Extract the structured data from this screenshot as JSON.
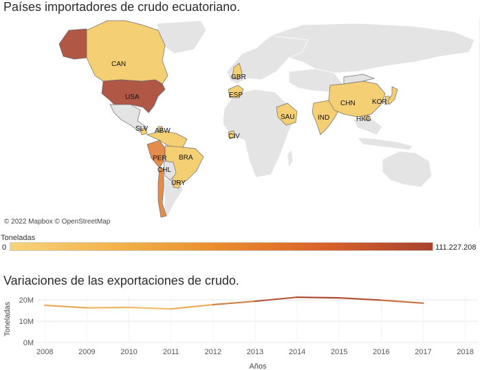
{
  "map": {
    "title": "Países importadores de crudo ecuatoriano.",
    "attribution": "© 2022 Mapbox © OpenStreetMap",
    "legend": {
      "title": "Toneladas",
      "min": "0",
      "max": "111.227.208"
    },
    "colors": {
      "base": "#e3e3e3",
      "low": "#f6d37a",
      "mid": "#ea8a2c",
      "high": "#a8412f"
    },
    "countries": [
      "CAN",
      "USA",
      "GBR",
      "ESP",
      "SAU",
      "CHN",
      "KOR",
      "IND",
      "HKG",
      "SLV",
      "ABW",
      "CIV",
      "PER",
      "BRA",
      "CHL",
      "URY"
    ]
  },
  "chart": {
    "title": "Variaciones de las exportaciones de crudo.",
    "ylabel": "Toneladas",
    "xlabel": "Años",
    "yticks": [
      "20M",
      "10M",
      "0M"
    ],
    "xticks": [
      "2008",
      "2009",
      "2010",
      "2011",
      "2012",
      "2013",
      "2014",
      "2015",
      "2016",
      "2017",
      "2018"
    ]
  },
  "chart_data": {
    "type": "line",
    "x": [
      2008,
      2009,
      2010,
      2011,
      2012,
      2013,
      2014,
      2015,
      2016,
      2017
    ],
    "values": [
      17.5,
      16.3,
      16.5,
      15.8,
      17.8,
      19.4,
      21.3,
      21.0,
      19.9,
      18.5
    ],
    "xlabel": "Años",
    "ylabel": "Toneladas",
    "xlim": [
      2008,
      2018
    ],
    "ylim": [
      0,
      22
    ],
    "grid": true,
    "colors": [
      "#f6c567",
      "#a8412f"
    ]
  }
}
